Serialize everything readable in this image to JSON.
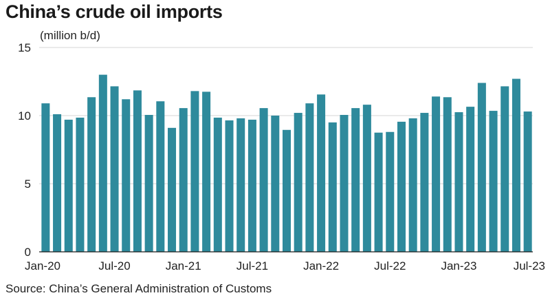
{
  "chart_data": {
    "type": "bar",
    "title": "China’s crude oil imports",
    "ylabel": "(million b/d)",
    "source": "Source: China’s General Administration of Customs",
    "ylim": [
      0,
      15
    ],
    "yticks": [
      0,
      5,
      10,
      15
    ],
    "grid": true,
    "bar_color": "#2e8a9c",
    "categories": [
      "Jan-20",
      "Feb-20",
      "Mar-20",
      "Apr-20",
      "May-20",
      "Jun-20",
      "Jul-20",
      "Aug-20",
      "Sep-20",
      "Oct-20",
      "Nov-20",
      "Dec-20",
      "Jan-21",
      "Feb-21",
      "Mar-21",
      "Apr-21",
      "May-21",
      "Jun-21",
      "Jul-21",
      "Aug-21",
      "Sep-21",
      "Oct-21",
      "Nov-21",
      "Dec-21",
      "Jan-22",
      "Feb-22",
      "Mar-22",
      "Apr-22",
      "May-22",
      "Jun-22",
      "Jul-22",
      "Aug-22",
      "Sep-22",
      "Oct-22",
      "Nov-22",
      "Dec-22",
      "Jan-23",
      "Feb-23",
      "Mar-23",
      "Apr-23",
      "May-23",
      "Jun-23",
      "Jul-23"
    ],
    "xtick_labels": [
      "Jan-20",
      "Jul-20",
      "Jan-21",
      "Jul-21",
      "Jan-22",
      "Jul-22",
      "Jan-23",
      "Jul-23"
    ],
    "values": [
      10.9,
      10.1,
      9.7,
      9.85,
      11.35,
      13.0,
      12.15,
      11.2,
      11.85,
      10.05,
      11.05,
      9.1,
      10.55,
      11.8,
      11.75,
      9.85,
      9.65,
      9.8,
      9.7,
      10.55,
      10.0,
      8.95,
      10.2,
      10.9,
      11.55,
      9.5,
      10.05,
      10.55,
      10.8,
      8.75,
      8.8,
      9.55,
      9.8,
      10.2,
      11.4,
      11.35,
      10.25,
      10.65,
      12.4,
      10.35,
      12.15,
      12.7,
      10.3
    ]
  }
}
